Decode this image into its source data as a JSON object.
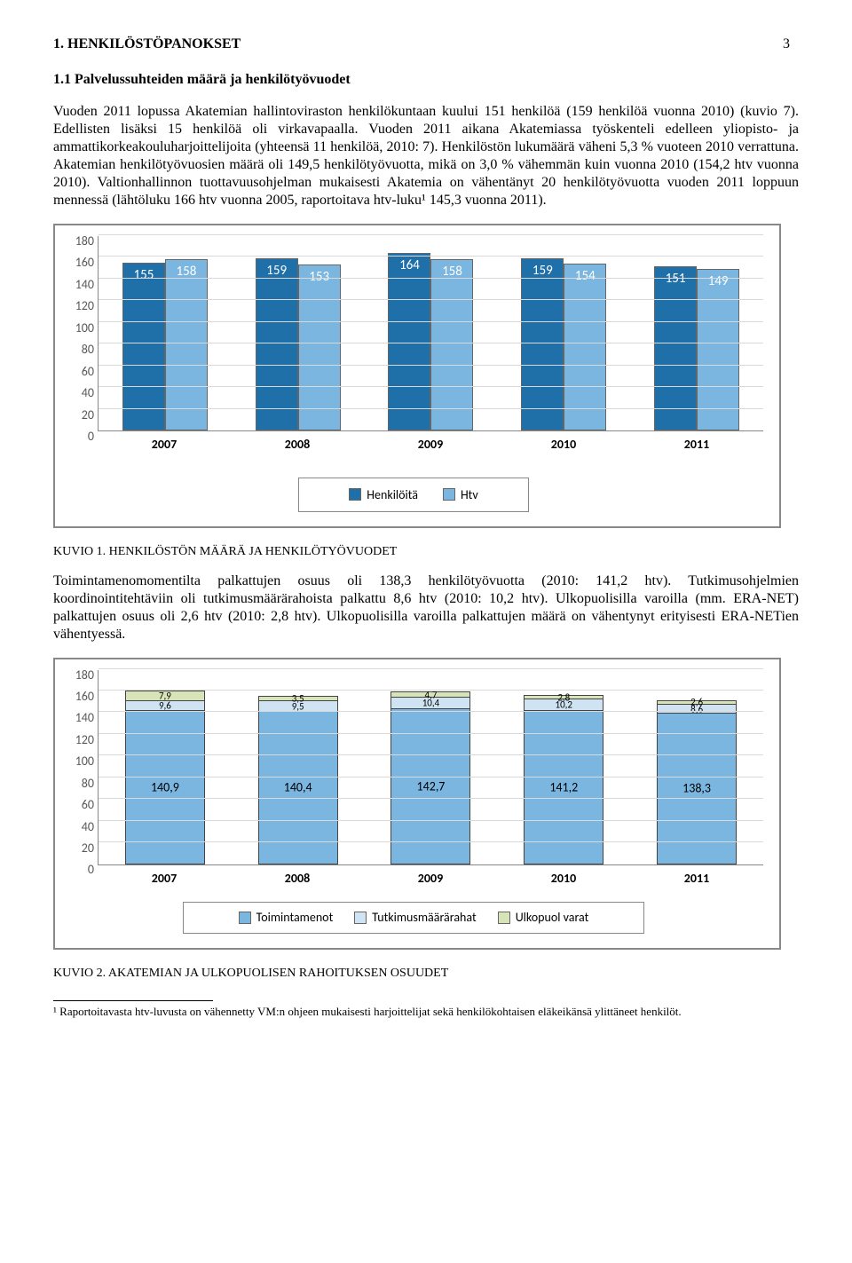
{
  "page_number": "3",
  "h1": "1. HENKILÖSTÖPANOKSET",
  "h2": "1.1 Palvelussuhteiden määrä ja henkilötyövuodet",
  "para1": "Vuoden 2011 lopussa Akatemian hallintoviraston henkilökuntaan kuului 151 henkilöä (159 henkilöä vuonna 2010) (kuvio 7). Edellisten lisäksi 15 henkilöä oli virkavapaalla. Vuoden 2011 aikana Akatemiassa työskenteli edelleen yliopisto- ja ammattikorkeakouluharjoittelijoita (yhteensä 11 henkilöä, 2010: 7). Henkilöstön lukumäärä väheni 5,3 % vuoteen 2010 verrattuna. Akatemian henkilötyövuosien määrä oli 149,5 henkilötyövuotta, mikä on 3,0 % vähemmän kuin vuonna 2010 (154,2 htv vuonna 2010). Valtionhallinnon tuottavuusohjelman mukaisesti Akatemia on vähentänyt 20 henkilötyövuotta vuoden 2011 loppuun mennessä (lähtöluku 166 htv vuonna 2005, raportoitava htv-luku¹ 145,3 vuonna 2011).",
  "chart1": {
    "type": "grouped-bar",
    "ylim": [
      0,
      180
    ],
    "ytick_step": 20,
    "yticks": [
      "0",
      "20",
      "40",
      "60",
      "80",
      "100",
      "120",
      "140",
      "160",
      "180"
    ],
    "categories": [
      "2007",
      "2008",
      "2009",
      "2010",
      "2011"
    ],
    "series": [
      {
        "name": "Henkilöitä",
        "color": "#1f6fa8",
        "values": [
          155,
          159,
          164,
          159,
          151
        ]
      },
      {
        "name": "Htv",
        "color": "#7ab6e0",
        "values": [
          158,
          153,
          158,
          154,
          149
        ]
      }
    ],
    "legend": [
      "Henkilöitä",
      "Htv"
    ],
    "grid_color": "#d9d9d9",
    "axis_color": "#888888",
    "label_color": "#ffffff",
    "tick_color": "#595959",
    "category_font_weight": "bold"
  },
  "caption1": "KUVIO 1. HENKILÖSTÖN MÄÄRÄ JA HENKILÖTYÖVUODET",
  "para2": "Toimintamenomomentilta palkattujen osuus oli 138,3 henkilötyövuotta (2010: 141,2 htv). Tutkimusohjelmien koordinointitehtäviin oli tutkimusmäärärahoista palkattu 8,6 htv (2010: 10,2 htv). Ulkopuolisilla varoilla (mm. ERA-NET) palkattujen osuus oli 2,6 htv (2010: 2,8 htv). Ulkopuolisilla varoilla palkattujen määrä on vähentynyt erityisesti ERA-NETien vähentyessä.",
  "chart2": {
    "type": "stacked-bar",
    "ylim": [
      0,
      180
    ],
    "ytick_step": 20,
    "yticks": [
      "0",
      "20",
      "40",
      "60",
      "80",
      "100",
      "120",
      "140",
      "160",
      "180"
    ],
    "categories": [
      "2007",
      "2008",
      "2009",
      "2010",
      "2011"
    ],
    "series": [
      {
        "name": "Toimintamenot",
        "color": "#7ab6e0",
        "values": [
          140.9,
          140.4,
          142.7,
          141.2,
          138.3
        ]
      },
      {
        "name": "Tutkimusmäärärahat",
        "color": "#cfe3f2",
        "values": [
          9.6,
          9.5,
          10.4,
          10.2,
          8.6
        ]
      },
      {
        "name": "Ulkopuol varat",
        "color": "#d7e4b8",
        "values": [
          7.9,
          3.5,
          4.7,
          2.8,
          2.6
        ]
      }
    ],
    "labels_top": [
      "7,9",
      "3,5",
      "4,7",
      "2,8",
      "2,6"
    ],
    "labels_mid": [
      "9,6",
      "9,5",
      "10,4",
      "10,2",
      "8,6"
    ],
    "labels_bot": [
      "140,9",
      "140,4",
      "142,7",
      "141,2",
      "138,3"
    ],
    "legend": [
      "Toimintamenot",
      "Tutkimusmäärärahat",
      "Ulkopuol varat"
    ],
    "grid_color": "#d9d9d9",
    "axis_color": "#888888"
  },
  "caption2": "KUVIO 2. AKATEMIAN JA ULKOPUOLISEN RAHOITUKSEN OSUUDET",
  "footnote": "¹ Raportoitavasta htv-luvusta on vähennetty VM:n ohjeen mukaisesti harjoittelijat sekä henkilökohtaisen eläkeikänsä ylittäneet henkilöt."
}
